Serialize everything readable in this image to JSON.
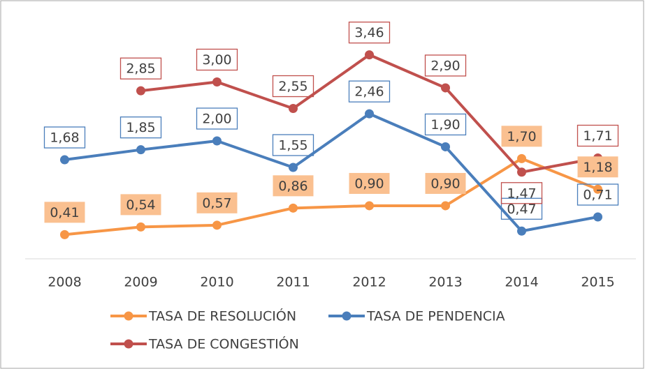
{
  "chart_data": {
    "type": "line",
    "categories": [
      "2008",
      "2009",
      "2010",
      "2011",
      "2012",
      "2013",
      "2014",
      "2015"
    ],
    "ylim": [
      0,
      4
    ],
    "legend": "bottom",
    "series": [
      {
        "name": "TASA DE RESOLUCIÓN",
        "color": "#f79646",
        "values": [
          0.41,
          0.54,
          0.57,
          0.86,
          0.9,
          0.9,
          1.7,
          1.18
        ],
        "value_labels": [
          "0,41",
          "0,54",
          "0,57",
          "0,86",
          "0,90",
          "0,90",
          "1,70",
          "1,18"
        ]
      },
      {
        "name": "TASA DE PENDENCIA",
        "color": "#4a7ebb",
        "values": [
          1.68,
          1.85,
          2.0,
          1.55,
          2.46,
          1.9,
          0.47,
          0.71
        ],
        "value_labels": [
          "1,68",
          "1,85",
          "2,00",
          "1,55",
          "2,46",
          "1,90",
          "0,47",
          "0,71"
        ]
      },
      {
        "name": "TASA DE CONGESTIÓN",
        "color": "#c0504d",
        "values": [
          null,
          2.85,
          3.0,
          2.55,
          3.46,
          2.9,
          1.47,
          1.71
        ],
        "value_labels": [
          null,
          "2,85",
          "3,00",
          "2,55",
          "3,46",
          "2,90",
          "1,47",
          "1,71"
        ]
      }
    ]
  }
}
